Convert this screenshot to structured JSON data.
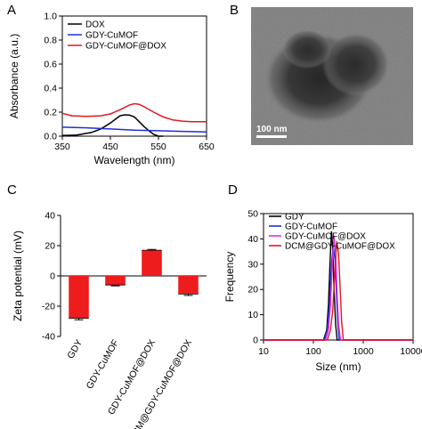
{
  "panels": {
    "A": "A",
    "B": "B",
    "C": "C",
    "D": "D"
  },
  "colors": {
    "black": "#000000",
    "blue": "#1f2fd6",
    "red": "#e3171e",
    "magenta": "#e526e5",
    "bar_red": "#ee1c1c"
  },
  "micrograph": {
    "scale_label": "100 nm"
  },
  "chart_data": [
    {
      "type": "line",
      "xlabel": "Wavelength (nm)",
      "ylabel": "Absorbance (a.u.)",
      "xlim": [
        350,
        650
      ],
      "ylim": [
        0,
        1.0
      ],
      "xticks": [
        "350",
        "450",
        "550",
        "650"
      ],
      "yticks": [
        "0.0",
        "0.2",
        "0.4",
        "0.6",
        "0.8",
        "1.0"
      ],
      "legend_position": "top-left",
      "series": [
        {
          "name": "DOX",
          "color": "#000000",
          "x": [
            350,
            380,
            410,
            430,
            450,
            460,
            470,
            480,
            490,
            500,
            510,
            520,
            530,
            540,
            550,
            560
          ],
          "y": [
            0.005,
            0.01,
            0.03,
            0.06,
            0.11,
            0.14,
            0.17,
            0.178,
            0.175,
            0.16,
            0.12,
            0.08,
            0.045,
            0.015,
            0.0,
            0.0
          ]
        },
        {
          "name": "GDY-CuMOF",
          "color": "#1f2fd6",
          "x": [
            350,
            400,
            450,
            500,
            550,
            600,
            650
          ],
          "y": [
            0.075,
            0.07,
            0.06,
            0.05,
            0.045,
            0.04,
            0.035
          ]
        },
        {
          "name": "GDY-CuMOF@DOX",
          "color": "#e3171e",
          "x": [
            350,
            370,
            400,
            430,
            450,
            470,
            490,
            500,
            510,
            520,
            540,
            560,
            580,
            600,
            620,
            650
          ],
          "y": [
            0.19,
            0.17,
            0.165,
            0.17,
            0.185,
            0.22,
            0.26,
            0.27,
            0.265,
            0.245,
            0.2,
            0.16,
            0.135,
            0.125,
            0.12,
            0.12
          ]
        }
      ]
    },
    {
      "type": "bar",
      "ylabel": "Zeta potential (mV)",
      "ylim": [
        -40,
        40
      ],
      "yticks": [
        "40",
        "20",
        "0",
        "-20",
        "-40"
      ],
      "categories": [
        "GDY",
        "GDY-CuMOF",
        "GDY-CuMOF@DOX",
        "DCM@GDY-CuMOF@DOX"
      ],
      "values": [
        -28,
        -6,
        17,
        -12
      ],
      "errors": [
        1.0,
        0.6,
        0.5,
        0.9
      ],
      "color": "#ee1c1c"
    },
    {
      "type": "line",
      "xlabel": "Size (nm)",
      "ylabel": "Frequency",
      "x_scale": "log",
      "xlim": [
        10,
        10000
      ],
      "ylim": [
        0,
        50
      ],
      "xticks": [
        "10",
        "100",
        "1000",
        "10000"
      ],
      "yticks": [
        "0",
        "10",
        "20",
        "30",
        "40",
        "50"
      ],
      "legend_position": "top-right",
      "series": [
        {
          "name": "GDY",
          "color": "#000000",
          "x": [
            160,
            185,
            200,
            215,
            230,
            245,
            260,
            280,
            300
          ],
          "y": [
            0,
            4,
            14,
            30,
            43,
            36,
            20,
            6,
            0
          ]
        },
        {
          "name": "GDY-CuMOF",
          "color": "#1f2fd6",
          "x": [
            165,
            190,
            210,
            230,
            250,
            270,
            290,
            310,
            330
          ],
          "y": [
            0,
            4,
            14,
            30,
            37,
            32,
            18,
            6,
            0
          ]
        },
        {
          "name": "GDY-CuMOF@DOX",
          "color": "#e526e5",
          "x": [
            175,
            200,
            220,
            240,
            260,
            280,
            300,
            320,
            350
          ],
          "y": [
            0,
            4,
            14,
            30,
            41,
            34,
            18,
            6,
            0
          ]
        },
        {
          "name": "DCM@GDY-CuMOF@DOX",
          "color": "#e3171e",
          "x": [
            190,
            220,
            245,
            270,
            295,
            320,
            345,
            370,
            400
          ],
          "y": [
            0,
            4,
            12,
            28,
            39,
            34,
            20,
            7,
            0
          ]
        }
      ]
    }
  ]
}
